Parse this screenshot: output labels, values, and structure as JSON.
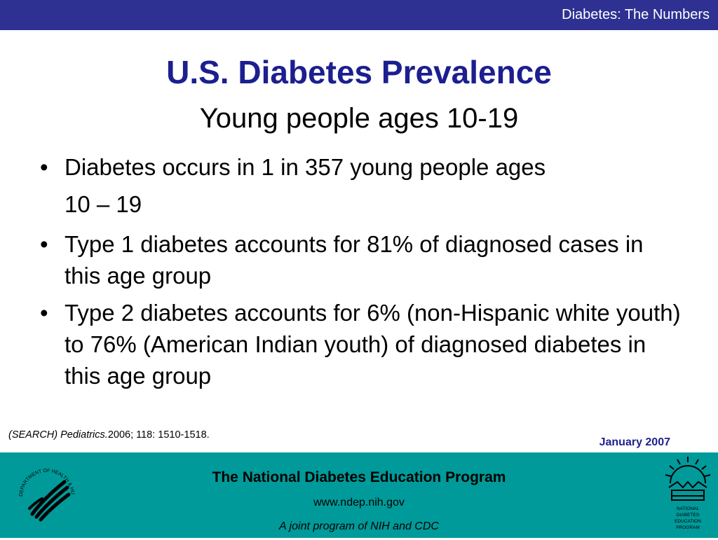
{
  "header": {
    "bar_title": "Diabetes: The Numbers"
  },
  "slide": {
    "title": "U.S. Diabetes Prevalence",
    "subtitle": "Young people ages 10-19",
    "bullets": [
      {
        "line1": "Diabetes occurs in 1 in 357 young people ages",
        "line2": "10 – 19"
      },
      {
        "text": "Type 1 diabetes accounts for 81% of diagnosed cases in this age group"
      },
      {
        "text": "Type 2 diabetes accounts for 6% (non-Hispanic white youth) to 76% (American Indian youth) of diagnosed diabetes in this age group"
      }
    ]
  },
  "citation": {
    "italic_part": "(SEARCH) Pediatrics.",
    "rest": "2006; 118: 1510-1518."
  },
  "date": "January 2007",
  "footer": {
    "org": "The National Diabetes Education Program",
    "url": "www.ndep.nih.gov",
    "joint": "A joint program of NIH and CDC",
    "hhs_seal": {
      "top_text": "DEPARTMENT OF HEALTH & HUMAN SERVICES · USA",
      "icon": "hhs-eagle-icon"
    },
    "ndep_logo": {
      "icon": "ndep-sun-icon",
      "lines": [
        "NATIONAL",
        "DIABETES",
        "EDUCATION",
        "PROGRAM"
      ]
    }
  },
  "colors": {
    "header_bar": "#2e3192",
    "title": "#1c1f8f",
    "footer_band": "#009a9a",
    "date": "#1c1f8f"
  }
}
